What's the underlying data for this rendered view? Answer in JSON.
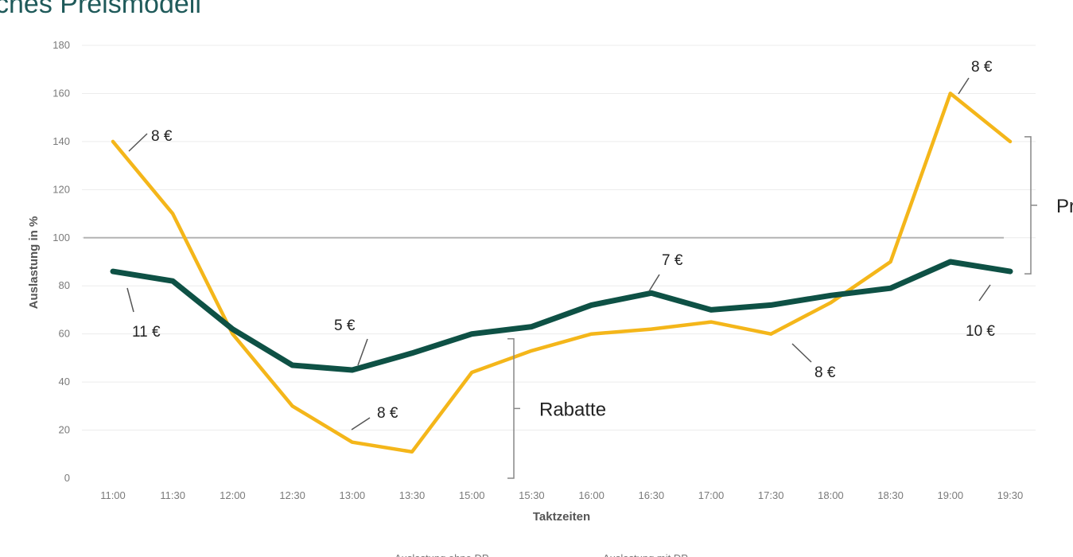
{
  "page": {
    "title": "ches Preismodell"
  },
  "chart_data": {
    "type": "line",
    "title": "",
    "xlabel": "Taktzeiten",
    "ylabel": "Auslastung in %",
    "ylim": [
      0,
      180
    ],
    "yticks": [
      0,
      20,
      40,
      60,
      80,
      100,
      120,
      140,
      160,
      180
    ],
    "grid": true,
    "reference_line": 100,
    "categories": [
      "11:00",
      "11:30",
      "12:00",
      "12:30",
      "13:00",
      "13:30",
      "15:00",
      "15:30",
      "16:00",
      "16:30",
      "17:00",
      "17:30",
      "18:00",
      "18:30",
      "19:00",
      "19:30"
    ],
    "series": [
      {
        "name": "Auslastung ohne DP",
        "color": "#f4b61a",
        "values": [
          140,
          110,
          60,
          30,
          15,
          11,
          44,
          53,
          60,
          62,
          65,
          60,
          73,
          90,
          160,
          140
        ]
      },
      {
        "name": "Auslastung mit DP",
        "color": "#0e5145",
        "values": [
          86,
          82,
          62,
          47,
          45,
          52,
          60,
          63,
          72,
          77,
          70,
          72,
          76,
          79,
          90,
          86
        ]
      }
    ],
    "price_labels": [
      {
        "text": "8 €",
        "at": "11:00",
        "series": 0
      },
      {
        "text": "11 €",
        "at": "11:00",
        "series": 1
      },
      {
        "text": "5 €",
        "at": "13:00",
        "series": 1
      },
      {
        "text": "8 €",
        "at": "13:00",
        "series": 0
      },
      {
        "text": "7 €",
        "at": "16:30",
        "series": 1
      },
      {
        "text": "8 €",
        "at": "17:30",
        "series": 0
      },
      {
        "text": "8 €",
        "at": "19:00",
        "series": 0
      },
      {
        "text": "10 €",
        "at": "19:30",
        "series": 1
      }
    ],
    "brackets": [
      {
        "label": "Rabatte",
        "from": 0,
        "to": 58
      },
      {
        "label": "Pr",
        "from": 85,
        "to": 142
      }
    ],
    "legend_placement": "bottom"
  }
}
